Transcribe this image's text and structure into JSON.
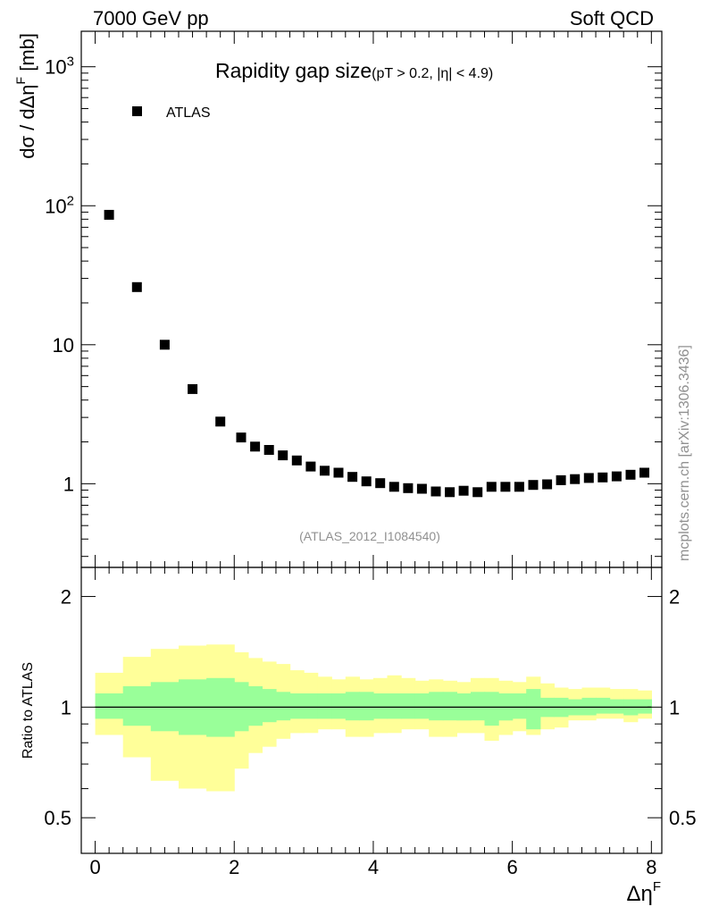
{
  "header": {
    "left": "7000 GeV pp",
    "right": "Soft QCD"
  },
  "watermark": "mcplots.cern.ch [arXiv:1306.3436]",
  "chart_data": [
    {
      "type": "scatter",
      "title": "Rapidity gap size",
      "subtitle": "(pT > 0.2, |η| < 4.9)",
      "ylabel": "dσ / dΔη",
      "ylabel_sup": "F",
      "ylabel_unit": " [mb]",
      "yscale": "log",
      "ylim": [
        0.25,
        1800
      ],
      "xlim": [
        -0.2,
        8.15
      ],
      "y_ticks": [
        {
          "v": 1,
          "base": "1",
          "sup": ""
        },
        {
          "v": 10,
          "base": "10",
          "sup": ""
        },
        {
          "v": 100,
          "base": "10",
          "sup": "2"
        },
        {
          "v": 1000,
          "base": "10",
          "sup": "3"
        }
      ],
      "legend": {
        "label": "ATLAS",
        "position": "top-left",
        "marker_color": "#000000"
      },
      "analysis_label": "(ATLAS_2012_I1084540)",
      "series": [
        {
          "name": "ATLAS",
          "x": [
            0.2,
            0.6,
            1.0,
            1.4,
            1.8,
            2.1,
            2.3,
            2.5,
            2.7,
            2.9,
            3.1,
            3.3,
            3.5,
            3.7,
            3.9,
            4.1,
            4.3,
            4.5,
            4.7,
            4.9,
            5.1,
            5.3,
            5.5,
            5.7,
            5.9,
            6.1,
            6.3,
            6.5,
            6.7,
            6.9,
            7.1,
            7.3,
            7.5,
            7.7,
            7.9
          ],
          "y": [
            86,
            26,
            10,
            4.8,
            2.8,
            2.15,
            1.85,
            1.75,
            1.6,
            1.47,
            1.33,
            1.24,
            1.2,
            1.12,
            1.04,
            1.01,
            0.95,
            0.93,
            0.92,
            0.88,
            0.87,
            0.89,
            0.87,
            0.95,
            0.95,
            0.95,
            0.98,
            0.99,
            1.06,
            1.08,
            1.1,
            1.11,
            1.13,
            1.16,
            1.2
          ]
        }
      ]
    },
    {
      "type": "area",
      "ylabel": "Ratio to ATLAS",
      "yscale": "log",
      "ylim": [
        0.4,
        2.4
      ],
      "xlim": [
        -0.2,
        8.15
      ],
      "xlabel": "Δη",
      "xlabel_sup": "F",
      "x_ticks": [
        0,
        2,
        4,
        6,
        8
      ],
      "y_ticks": [
        0.5,
        1,
        2
      ],
      "y_tick_labels": [
        "0.5",
        "1",
        "2"
      ],
      "reference_line": 1,
      "bands": {
        "edges": [
          0,
          0.4,
          0.8,
          1.2,
          1.6,
          2.0,
          2.2,
          2.4,
          2.6,
          2.8,
          3.0,
          3.2,
          3.4,
          3.6,
          3.8,
          4.0,
          4.2,
          4.4,
          4.6,
          4.8,
          5.0,
          5.2,
          5.4,
          5.6,
          5.8,
          6.0,
          6.2,
          6.4,
          6.6,
          6.8,
          7.0,
          7.2,
          7.4,
          7.6,
          7.8,
          8.0
        ],
        "yellow": {
          "color": "#ffff99",
          "lo": [
            0.84,
            0.73,
            0.63,
            0.6,
            0.59,
            0.68,
            0.75,
            0.78,
            0.82,
            0.85,
            0.85,
            0.87,
            0.87,
            0.83,
            0.83,
            0.85,
            0.85,
            0.87,
            0.87,
            0.83,
            0.83,
            0.85,
            0.85,
            0.81,
            0.84,
            0.86,
            0.84,
            0.87,
            0.88,
            0.92,
            0.92,
            0.93,
            0.93,
            0.91,
            0.93
          ],
          "hi": [
            1.24,
            1.37,
            1.44,
            1.47,
            1.48,
            1.41,
            1.36,
            1.33,
            1.31,
            1.26,
            1.24,
            1.21,
            1.19,
            1.21,
            1.19,
            1.2,
            1.22,
            1.2,
            1.18,
            1.19,
            1.18,
            1.17,
            1.2,
            1.2,
            1.18,
            1.17,
            1.21,
            1.16,
            1.13,
            1.12,
            1.13,
            1.13,
            1.12,
            1.12,
            1.11
          ]
        },
        "green": {
          "color": "#99ff99",
          "lo": [
            0.93,
            0.89,
            0.86,
            0.84,
            0.83,
            0.86,
            0.89,
            0.91,
            0.92,
            0.93,
            0.93,
            0.93,
            0.93,
            0.92,
            0.92,
            0.93,
            0.93,
            0.93,
            0.93,
            0.92,
            0.92,
            0.92,
            0.92,
            0.89,
            0.92,
            0.93,
            0.87,
            0.94,
            0.94,
            0.95,
            0.95,
            0.96,
            0.96,
            0.95,
            0.96
          ],
          "hi": [
            1.09,
            1.14,
            1.17,
            1.19,
            1.2,
            1.17,
            1.14,
            1.12,
            1.1,
            1.09,
            1.09,
            1.09,
            1.09,
            1.1,
            1.1,
            1.09,
            1.09,
            1.09,
            1.09,
            1.1,
            1.1,
            1.09,
            1.1,
            1.1,
            1.09,
            1.09,
            1.12,
            1.06,
            1.06,
            1.05,
            1.06,
            1.06,
            1.05,
            1.05,
            1.05
          ]
        }
      }
    }
  ]
}
